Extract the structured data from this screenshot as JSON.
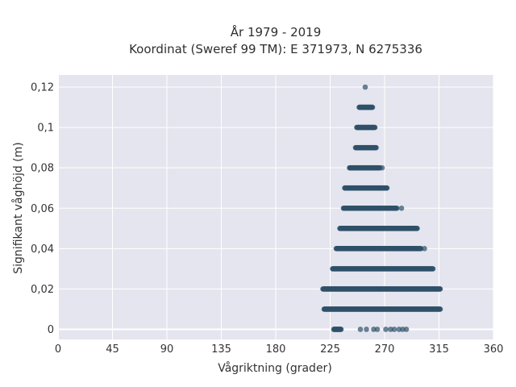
{
  "chart_data": {
    "type": "scatter",
    "title": "År 1979 - 2019",
    "subtitle": "Koordinat (Sweref 99 TM): E 371973, N 6275336",
    "xlabel": "Vågriktning (grader)",
    "ylabel": "Signifikant våghöjd (m)",
    "xlim": [
      0,
      360
    ],
    "ylim": [
      -0.005,
      0.126
    ],
    "x_ticks": [
      0,
      45,
      90,
      135,
      180,
      225,
      270,
      315,
      360
    ],
    "x_tick_labels": [
      "0",
      "45",
      "90",
      "135",
      "180",
      "225",
      "270",
      "315",
      "360"
    ],
    "y_ticks": [
      0,
      0.02,
      0.04,
      0.06,
      0.08,
      0.1,
      0.12
    ],
    "y_tick_labels": [
      "0",
      "0,02",
      "0,04",
      "0,06",
      "0,08",
      "0,1",
      "0,12"
    ],
    "grid": true,
    "plot_background": "#e5e5ef",
    "marker_color": "#2e5068",
    "points_by_height": [
      {
        "y": 0.12,
        "x_ranges": [
          [
            254,
            254
          ]
        ],
        "isolated_x": []
      },
      {
        "y": 0.11,
        "x_ranges": [
          [
            249,
            260
          ]
        ],
        "isolated_x": []
      },
      {
        "y": 0.1,
        "x_ranges": [
          [
            247,
            262
          ]
        ],
        "isolated_x": []
      },
      {
        "y": 0.09,
        "x_ranges": [
          [
            246,
            263
          ]
        ],
        "isolated_x": []
      },
      {
        "y": 0.08,
        "x_ranges": [
          [
            241,
            266
          ]
        ],
        "isolated_x": [
          268
        ]
      },
      {
        "y": 0.07,
        "x_ranges": [
          [
            237,
            272
          ]
        ],
        "isolated_x": []
      },
      {
        "y": 0.06,
        "x_ranges": [
          [
            236,
            280
          ]
        ],
        "isolated_x": [
          284
        ]
      },
      {
        "y": 0.05,
        "x_ranges": [
          [
            233,
            297
          ]
        ],
        "isolated_x": []
      },
      {
        "y": 0.04,
        "x_ranges": [
          [
            230,
            300
          ]
        ],
        "isolated_x": [
          303
        ]
      },
      {
        "y": 0.03,
        "x_ranges": [
          [
            227,
            310
          ]
        ],
        "isolated_x": []
      },
      {
        "y": 0.02,
        "x_ranges": [
          [
            219,
            316
          ]
        ],
        "isolated_x": []
      },
      {
        "y": 0.01,
        "x_ranges": [
          [
            220,
            316
          ]
        ],
        "isolated_x": []
      },
      {
        "y": 0.0,
        "x_ranges": [
          [
            228,
            234
          ]
        ],
        "isolated_x": [
          250,
          255,
          261,
          264,
          271,
          275,
          278,
          282,
          285,
          288
        ]
      }
    ]
  }
}
